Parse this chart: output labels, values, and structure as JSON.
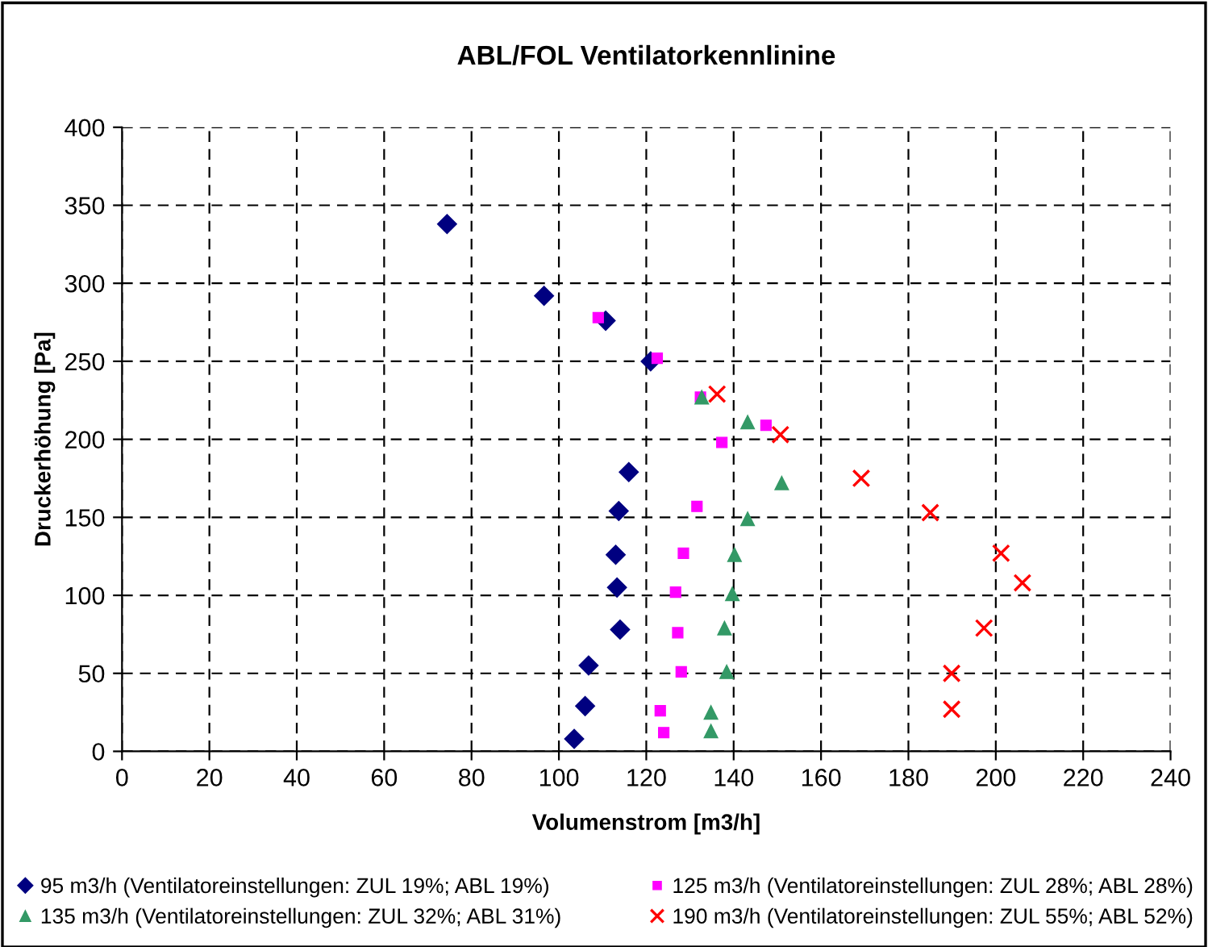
{
  "chart_data": {
    "type": "scatter",
    "title": "ABL/FOL Ventilatorkennlinine",
    "xlabel": "Volumenstrom [m3/h]",
    "ylabel": "Druckerhöhung [Pa]",
    "xlim": [
      0,
      240
    ],
    "xticks": [
      0,
      20,
      40,
      60,
      80,
      100,
      120,
      140,
      160,
      180,
      200,
      220,
      240
    ],
    "ylim": [
      0,
      400
    ],
    "yticks": [
      0,
      50,
      100,
      150,
      200,
      250,
      300,
      350,
      400
    ],
    "grid": true,
    "legend": "bottom",
    "series": [
      {
        "name": "95 m3/h (Ventilatoreinstellungen: ZUL 19%; ABL 19%)",
        "color": "#000080",
        "marker": "diamond",
        "x": [
          74.4,
          96.6,
          110.7,
          121,
          116,
          113.7,
          113,
          113.3,
          114,
          106.8,
          106,
          103.5
        ],
        "values": [
          338,
          292,
          276,
          250,
          179,
          154,
          126,
          105,
          78,
          55,
          29,
          8
        ]
      },
      {
        "name": "125 m3/h (Ventilatoreinstellungen: ZUL 28%; ABL 28%)",
        "color": "#ff00ff",
        "marker": "square",
        "x": [
          109,
          122.5,
          132.4,
          147.4,
          137.3,
          131.6,
          128.5,
          126.7,
          127.2,
          128,
          123.2,
          124
        ],
        "values": [
          278,
          252,
          227,
          209,
          198,
          157,
          127,
          102,
          76,
          51,
          26,
          12
        ]
      },
      {
        "name": "135 m3/h (Ventilatoreinstellungen: ZUL 32%; ABL 31%)",
        "color": "#339966",
        "marker": "triangle",
        "x": [
          132.7,
          143.2,
          151,
          143.2,
          140.2,
          139.7,
          137.9,
          138.4,
          134.8,
          134.8
        ],
        "values": [
          227,
          211,
          172,
          149,
          126,
          101,
          79,
          51,
          25,
          13
        ]
      },
      {
        "name": "190 m3/h (Ventilatoreinstellungen: ZUL 55%; ABL 52%)",
        "color": "#ff0000",
        "marker": "cross",
        "x": [
          136.2,
          150.7,
          169.2,
          185,
          201.2,
          206.1,
          197.3,
          189.9,
          189.9
        ],
        "values": [
          229,
          203,
          175,
          153,
          127,
          108,
          79,
          50,
          27
        ]
      }
    ]
  }
}
